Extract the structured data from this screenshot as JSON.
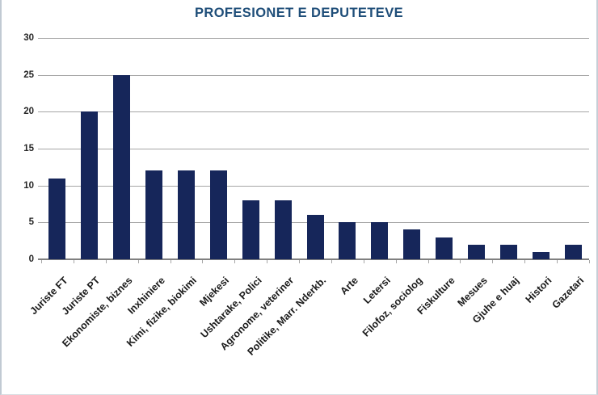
{
  "chart_data": {
    "type": "bar",
    "title": "PROFESIONET E DEPUTETEVE",
    "categories": [
      "Juriste FT",
      "Juriste PT",
      "Ekonomiste, biznes",
      "Inxhiniere",
      "Kimi, fizike, biokimi",
      "Mjekesi",
      "Ushtarake, Polici",
      "Agronome, veteriner",
      "Politike, Marr. Nderkb.",
      "Arte",
      "Letersi",
      "Filofoz, sociolog",
      "Fiskulture",
      "Mesues",
      "Gjuhe e huaj",
      "Histori",
      "Gazetari"
    ],
    "values": [
      11,
      20,
      25,
      12,
      12,
      12,
      8,
      8,
      6,
      5,
      5,
      4,
      3,
      2,
      2,
      1,
      2
    ],
    "xlabel": "",
    "ylabel": "",
    "ylim": [
      0,
      30
    ],
    "yticks": [
      0,
      5,
      10,
      15,
      20,
      25,
      30
    ],
    "grid": true,
    "legend": false,
    "bar_color": "#16265A",
    "title_color": "#1F4E79",
    "gridline_color": "#A6A6A6",
    "axis_line_color": "#808080",
    "tick_label_color": "#262626",
    "frame_border_color": "#C6CED6"
  }
}
